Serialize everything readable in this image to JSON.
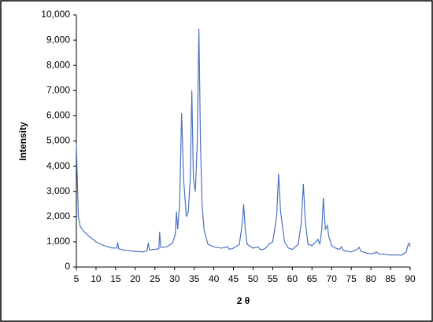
{
  "chart_data": {
    "type": "line",
    "xlabel": "2 θ",
    "ylabel": "Intensity",
    "color": "#4a72c0",
    "x": [
      5,
      5.5,
      6,
      7,
      8,
      10,
      12,
      14,
      15.3,
      15.5,
      15.8,
      17,
      20,
      22,
      23,
      23.3,
      23.6,
      25,
      26,
      26.2,
      26.5,
      28,
      29.5,
      30.2,
      30.5,
      30.8,
      31.3,
      31.8,
      32.3,
      33,
      33.5,
      34,
      34.4,
      34.8,
      35.3,
      35.8,
      36.2,
      36.6,
      37,
      37.5,
      38.5,
      40,
      42,
      43.5,
      44,
      45,
      46.5,
      47.3,
      47.6,
      48,
      48.5,
      50,
      51.2,
      52,
      53,
      54,
      55,
      56,
      56.5,
      57,
      58,
      59,
      60,
      61.5,
      62.3,
      62.8,
      63.3,
      64,
      65,
      66,
      66.5,
      67,
      67.5,
      67.9,
      68.4,
      68.9,
      69.3,
      70,
      71,
      72,
      72.5,
      73,
      75,
      76.5,
      77,
      77.5,
      79,
      80,
      81,
      81.4,
      82,
      85,
      88,
      89,
      89.5,
      89.8,
      90
    ],
    "values": [
      4900,
      2000,
      1600,
      1400,
      1250,
      1000,
      850,
      760,
      750,
      980,
      720,
      680,
      620,
      600,
      650,
      960,
      680,
      700,
      720,
      1400,
      780,
      800,
      950,
      1300,
      2200,
      1500,
      2500,
      6100,
      3500,
      2000,
      2200,
      3500,
      7000,
      3500,
      3000,
      5000,
      9450,
      5000,
      2500,
      1500,
      900,
      800,
      750,
      800,
      700,
      750,
      900,
      1800,
      2500,
      1500,
      900,
      750,
      800,
      680,
      720,
      900,
      1000,
      2000,
      3700,
      2200,
      1000,
      750,
      700,
      900,
      1800,
      3300,
      1800,
      900,
      850,
      1000,
      1100,
      900,
      1500,
      2750,
      1500,
      1650,
      1200,
      850,
      750,
      700,
      800,
      650,
      600,
      700,
      780,
      620,
      550,
      520,
      560,
      600,
      520,
      480,
      480,
      600,
      900,
      950,
      800
    ],
    "xlim": [
      5,
      90
    ],
    "xticks": [
      5,
      10,
      15,
      20,
      25,
      30,
      35,
      40,
      45,
      50,
      55,
      60,
      65,
      70,
      75,
      80,
      85,
      90
    ],
    "ylim": [
      0,
      10000
    ],
    "yticks": [
      0,
      {
        "value": 1000,
        "label": "1,000"
      },
      {
        "value": 2000,
        "label": "2,000"
      },
      {
        "value": 3000,
        "label": "3,000"
      },
      {
        "value": 4000,
        "label": "4,000"
      },
      {
        "value": 5000,
        "label": "5,000"
      },
      {
        "value": 6000,
        "label": "6,000"
      },
      {
        "value": 7000,
        "label": "7,000"
      },
      {
        "value": 8000,
        "label": "8,000"
      },
      {
        "value": 9000,
        "label": "9,000"
      },
      {
        "value": 10000,
        "label": "10,000"
      }
    ],
    "grid": false
  }
}
